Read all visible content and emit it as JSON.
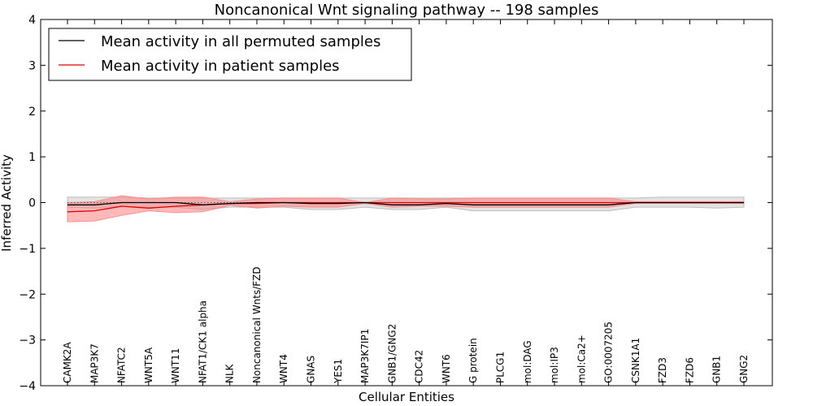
{
  "chart_data": {
    "type": "line",
    "title": "Noncanonical Wnt signaling pathway -- 198 samples",
    "xlabel": "Cellular Entities",
    "ylabel": "Inferred Activity",
    "ylim": [
      -4,
      4
    ],
    "yticks": [
      "4",
      "3",
      "2",
      "1",
      "0",
      "−1",
      "−2",
      "−3",
      "−4"
    ],
    "ytick_values": [
      4,
      3,
      2,
      1,
      0,
      -1,
      -2,
      -3,
      -4
    ],
    "legend_position": "top-left",
    "categories": [
      "CAMK2A",
      "MAP3K7",
      "NFATC2",
      "WNT5A",
      "WNT11",
      "NFAT1/CK1 alpha",
      "NLK",
      "Noncanonical Wnts/FZD",
      "WNT4",
      "GNAS",
      "YES1",
      "MAP3K7IP1",
      "GNB1/GNG2",
      "CDC42",
      "WNT6",
      "G protein",
      "PLCG1",
      "mol:DAG",
      "mol:IP3",
      "mol:Ca2+",
      "GO:0007205",
      "CSNK1A1",
      "FZD3",
      "FZD6",
      "GNB1",
      "GNG2"
    ],
    "series": [
      {
        "name": "Mean activity in all permuted samples",
        "color": "#000000",
        "band_color": "#b0b0b0",
        "values": [
          -0.05,
          -0.05,
          0.0,
          0.0,
          0.0,
          -0.05,
          -0.02,
          0.0,
          0.0,
          -0.02,
          -0.02,
          0.0,
          -0.05,
          -0.05,
          -0.02,
          -0.05,
          -0.05,
          -0.05,
          -0.05,
          -0.05,
          -0.05,
          0.0,
          0.0,
          0.0,
          0.0,
          0.0
        ],
        "upper": [
          0.12,
          0.12,
          0.12,
          0.1,
          0.1,
          0.1,
          0.1,
          0.1,
          0.1,
          0.1,
          0.1,
          0.1,
          0.1,
          0.1,
          0.1,
          0.1,
          0.1,
          0.1,
          0.1,
          0.1,
          0.1,
          0.1,
          0.12,
          0.12,
          0.12,
          0.12
        ],
        "lower": [
          -0.1,
          -0.12,
          -0.08,
          -0.1,
          -0.1,
          -0.15,
          -0.1,
          -0.1,
          -0.1,
          -0.15,
          -0.15,
          -0.1,
          -0.15,
          -0.15,
          -0.1,
          -0.18,
          -0.18,
          -0.18,
          -0.18,
          -0.18,
          -0.18,
          -0.1,
          -0.1,
          -0.1,
          -0.12,
          -0.1
        ]
      },
      {
        "name": "Mean activity in patient samples",
        "color": "#e00000",
        "band_color": "#ff8080",
        "values": [
          -0.2,
          -0.18,
          -0.08,
          -0.12,
          -0.08,
          -0.05,
          -0.02,
          -0.02,
          0.0,
          0.0,
          0.0,
          0.0,
          0.0,
          0.0,
          0.0,
          0.0,
          0.0,
          0.0,
          0.0,
          0.0,
          0.0,
          0.0,
          0.0,
          0.0,
          0.0,
          0.0
        ],
        "upper": [
          0.0,
          0.02,
          0.15,
          0.08,
          0.12,
          0.12,
          0.02,
          0.08,
          0.1,
          0.1,
          0.1,
          0.0,
          0.1,
          0.08,
          0.08,
          0.1,
          0.1,
          0.1,
          0.1,
          0.1,
          0.1,
          0.02,
          0.02,
          0.02,
          0.02,
          0.02
        ],
        "lower": [
          -0.42,
          -0.4,
          -0.28,
          -0.18,
          -0.22,
          -0.2,
          -0.06,
          -0.12,
          -0.08,
          -0.1,
          -0.1,
          -0.02,
          -0.1,
          -0.08,
          -0.08,
          -0.1,
          -0.1,
          -0.1,
          -0.1,
          -0.1,
          -0.1,
          -0.02,
          -0.02,
          -0.02,
          -0.02,
          -0.02
        ]
      }
    ]
  }
}
